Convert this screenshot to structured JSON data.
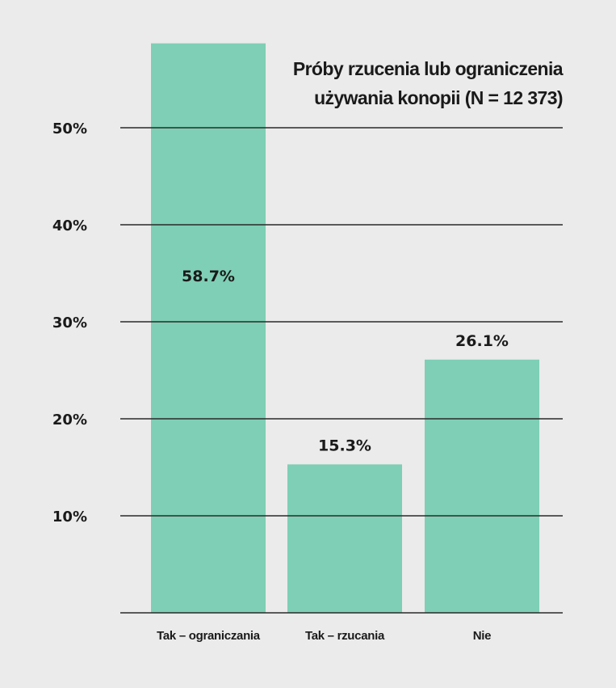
{
  "chart_data": {
    "type": "bar",
    "title_lines": [
      "Próby rzucenia lub ograniczenia",
      "używania konopii (N = 12 373)"
    ],
    "categories": [
      "Tak – ograniczania",
      "Tak – rzucania",
      "Nie"
    ],
    "values": [
      58.7,
      15.3,
      26.1
    ],
    "value_labels": [
      "58.7%",
      "15.3%",
      "26.1%"
    ],
    "y_ticks": [
      {
        "value": 10,
        "label": "10%"
      },
      {
        "value": 20,
        "label": "20%"
      },
      {
        "value": 30,
        "label": "30%"
      },
      {
        "value": 40,
        "label": "40%"
      },
      {
        "value": 50,
        "label": "50%"
      }
    ],
    "ylim": [
      0,
      58.7
    ],
    "grid": true,
    "bar_color": "#7ecfb5",
    "grid_color": "#2a2a2a",
    "text_color": "#1a1a1a",
    "background": "#ebebeb"
  }
}
